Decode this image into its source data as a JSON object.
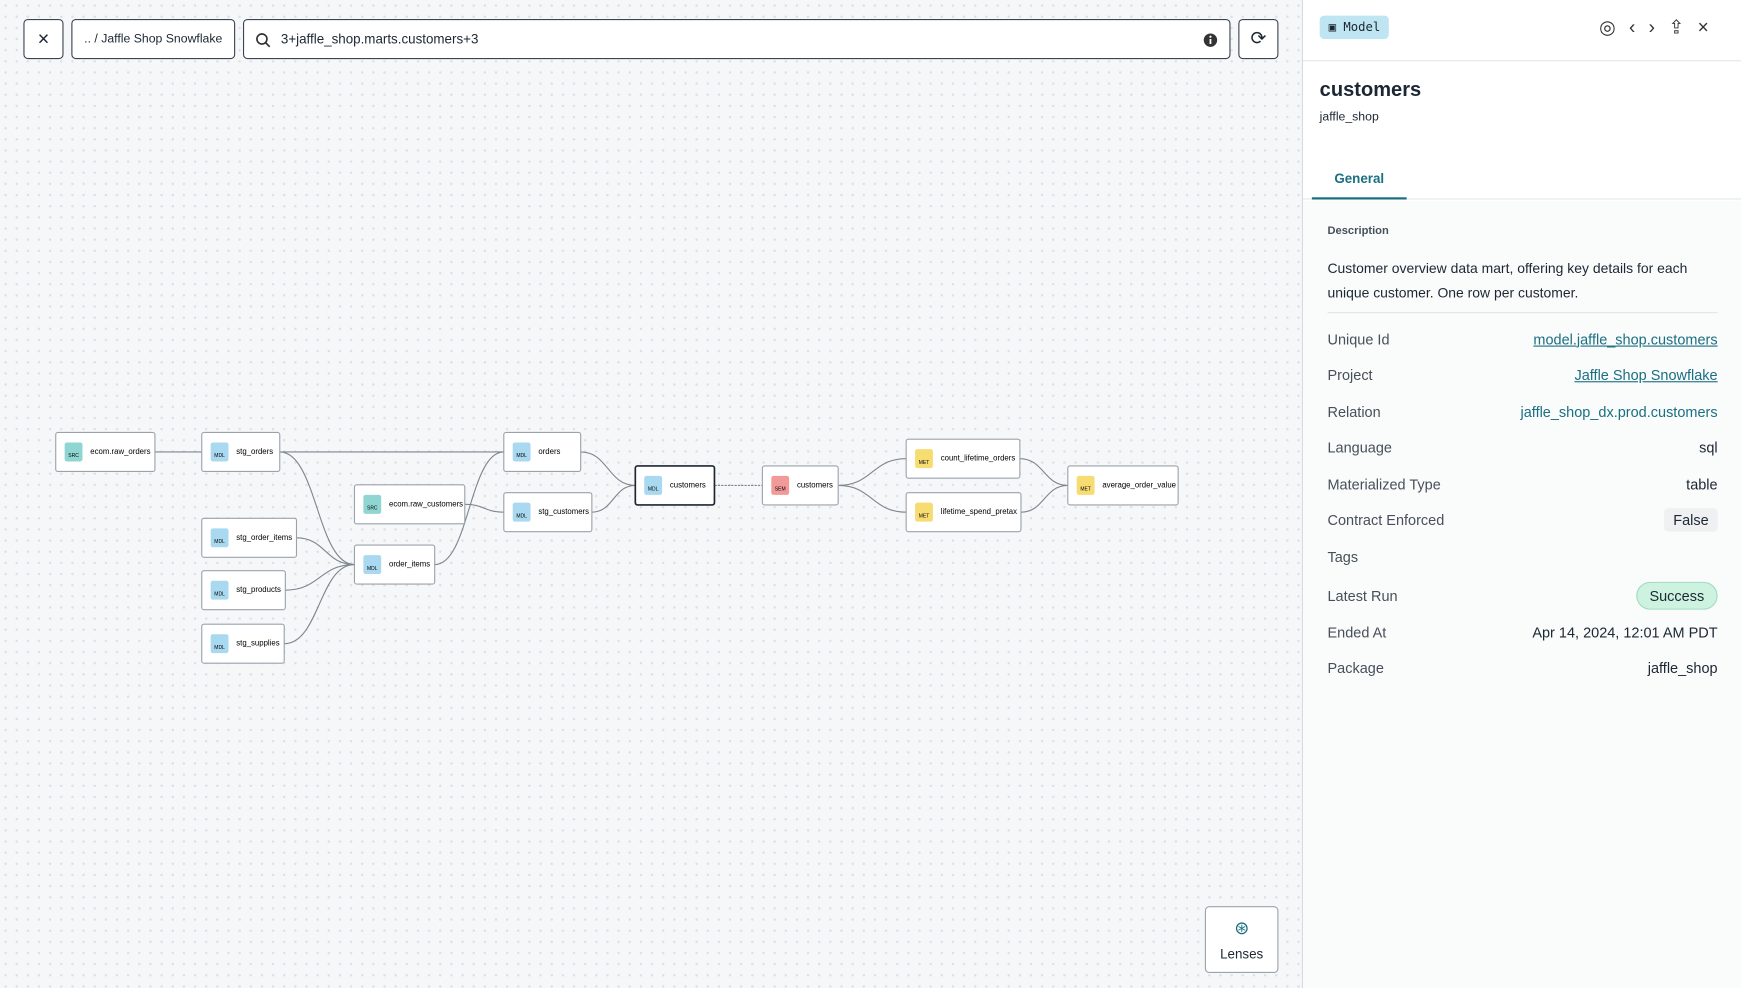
{
  "toolbar": {
    "breadcrumb": ".. / Jaffle Shop Snowflake",
    "query": "3+jaffle_shop.marts.customers+3"
  },
  "graph": {
    "nodes": [
      {
        "badge": "SRC",
        "label": "ecom.raw_orders"
      },
      {
        "badge": "MDL",
        "label": "stg_orders"
      },
      {
        "badge": "MDL",
        "label": "stg_order_items"
      },
      {
        "badge": "MDL",
        "label": "stg_products"
      },
      {
        "badge": "MDL",
        "label": "stg_supplies"
      },
      {
        "badge": "SRC",
        "label": "ecom.raw_customers"
      },
      {
        "badge": "MDL",
        "label": "order_items"
      },
      {
        "badge": "MDL",
        "label": "orders"
      },
      {
        "badge": "MDL",
        "label": "stg_customers"
      },
      {
        "badge": "MDL",
        "label": "customers"
      },
      {
        "badge": "SEM",
        "label": "customers"
      },
      {
        "badge": "MET",
        "label": "count_lifetime_orders"
      },
      {
        "badge": "MET",
        "label": "lifetime_spend_pretax"
      },
      {
        "badge": "MET",
        "label": "average_order_value"
      }
    ],
    "lenses": "Lenses"
  },
  "panel": {
    "badge": "Model",
    "title": "customers",
    "subtitle": "jaffle_shop",
    "tab": "General",
    "description_label": "Description",
    "description": "Customer overview data mart, offering key details for each unique customer. One row per customer.",
    "rows": [
      {
        "label": "Unique Id",
        "value": "model.jaffle_shop.customers"
      },
      {
        "label": "Project",
        "value": "Jaffle Shop Snowflake"
      },
      {
        "label": "Relation",
        "value": "jaffle_shop_dx.prod.customers"
      },
      {
        "label": "Language",
        "value": "sql"
      },
      {
        "label": "Materialized Type",
        "value": "table"
      },
      {
        "label": "Contract Enforced",
        "value": "False"
      },
      {
        "label": "Tags"
      },
      {
        "label": "Latest Run",
        "value": "Success"
      },
      {
        "label": "Ended At",
        "value": "Apr 14, 2024, 12:01 AM PDT"
      },
      {
        "label": "Package",
        "value": "jaffle_shop"
      }
    ]
  }
}
